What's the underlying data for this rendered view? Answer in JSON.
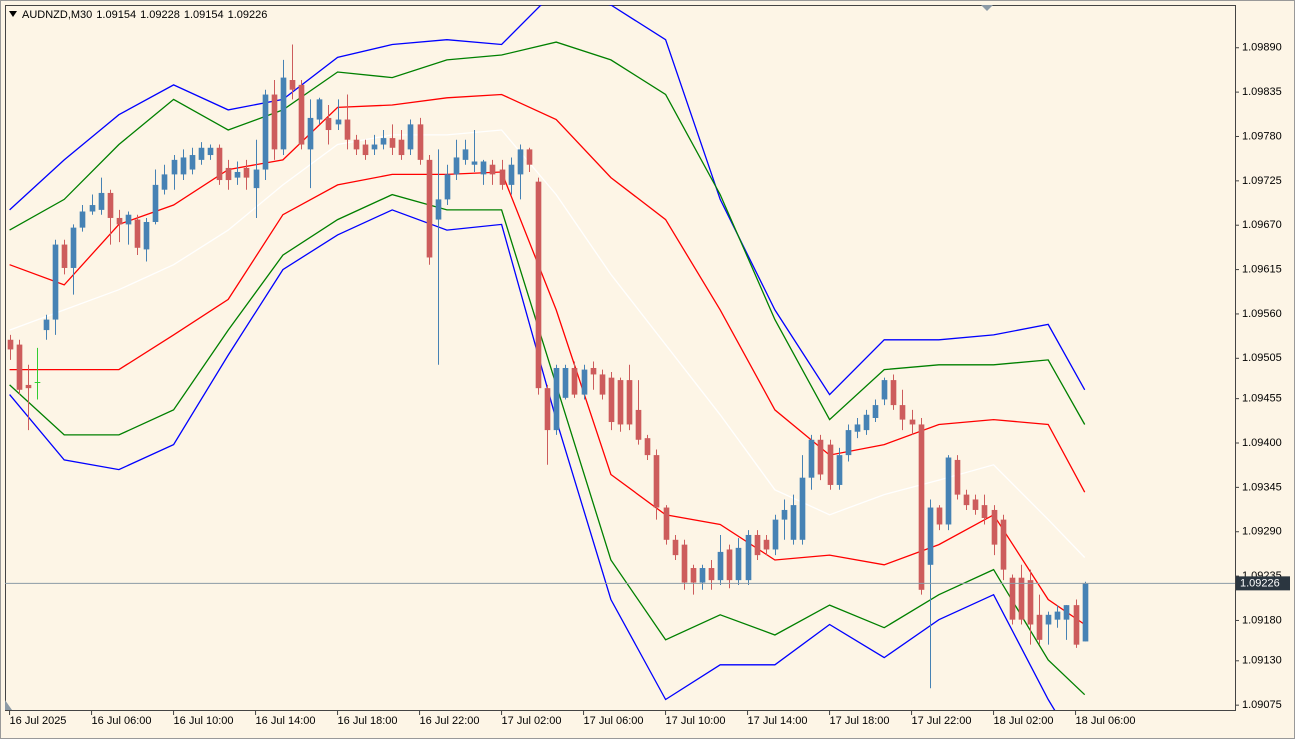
{
  "chart_data": {
    "type": "candlestick",
    "symbol": "AUDNZD,M30",
    "open": [
      1.09528,
      1.09522,
      1.09472,
      1.09475,
      1.0954,
      1.09553,
      1.09646,
      1.09617,
      1.09667,
      1.09687,
      1.09689,
      1.0971,
      1.09679,
      1.09671,
      1.09677,
      1.0964,
      1.09674,
      1.09714,
      1.09733,
      1.09733,
      1.09739,
      1.09751,
      1.09757,
      1.09766,
      1.09741,
      1.09729,
      1.09741,
      1.09716,
      1.09739,
      1.09832,
      1.09764,
      1.0985,
      1.09844,
      1.09764,
      1.09801,
      1.09803,
      1.09795,
      1.09801,
      1.09776,
      1.0977,
      1.09764,
      1.0977,
      1.09778,
      1.09776,
      1.09764,
      1.09795,
      1.09751,
      1.09677,
      1.09702,
      1.09733,
      1.09751,
      1.09745,
      1.09733,
      1.09745,
      1.09739,
      1.0972,
      1.09733,
      1.09764,
      1.09724,
      1.09468,
      1.09416,
      1.09456,
      1.09493,
      1.0946,
      1.09493,
      1.09485,
      1.09481,
      1.09478,
      1.09478,
      1.09441,
      1.09406,
      1.09385,
      1.0932,
      1.0928,
      1.09274,
      1.09245,
      1.09227,
      1.09245,
      1.0923,
      1.09268,
      1.0923,
      1.0923,
      1.09286,
      1.0928,
      1.09268,
      1.09305,
      1.0928,
      1.0928,
      1.09357,
      1.09404,
      1.09398,
      1.09348,
      1.09385,
      1.09414,
      1.09416,
      1.09431,
      1.09454,
      1.09478,
      1.09447,
      1.09429,
      1.09423,
      1.09249,
      1.0932,
      1.09299,
      1.09379,
      1.09336,
      1.0933,
      1.09323,
      1.09317,
      1.09305,
      1.09233,
      1.09233,
      1.0923,
      1.09187,
      1.09175,
      1.09181,
      1.09181,
      1.09199,
      1.09154
    ],
    "high": [
      1.09534,
      1.09528,
      1.09497,
      1.09518,
      1.09559,
      1.09652,
      1.09652,
      1.09671,
      1.09695,
      1.09708,
      1.09729,
      1.09714,
      1.09689,
      1.09687,
      1.09683,
      1.09679,
      1.09739,
      1.09745,
      1.09757,
      1.09764,
      1.09766,
      1.09773,
      1.0977,
      1.0977,
      1.09751,
      1.09749,
      1.09751,
      1.09776,
      1.09838,
      1.0985,
      1.09875,
      1.09894,
      1.0985,
      1.09826,
      1.09828,
      1.09819,
      1.09826,
      1.09832,
      1.09782,
      1.09776,
      1.09782,
      1.09788,
      1.09795,
      1.09788,
      1.09801,
      1.09803,
      1.09757,
      1.09764,
      1.09745,
      1.09776,
      1.09776,
      1.09788,
      1.09751,
      1.09751,
      1.09751,
      1.09754,
      1.0977,
      1.09766,
      1.09729,
      1.09472,
      1.09497,
      1.09497,
      1.09501,
      1.09497,
      1.09501,
      1.09491,
      1.09488,
      1.09481,
      1.09497,
      1.09478,
      1.0941,
      1.09392,
      1.09323,
      1.09286,
      1.0928,
      1.09249,
      1.09249,
      1.09255,
      1.09286,
      1.09274,
      1.09282,
      1.09292,
      1.09292,
      1.09286,
      1.09311,
      1.0933,
      1.09336,
      1.09385,
      1.0941,
      1.0941,
      1.09404,
      1.09394,
      1.09423,
      1.09431,
      1.09441,
      1.09454,
      1.09481,
      1.09485,
      1.09466,
      1.09441,
      1.09431,
      1.0933,
      1.09323,
      1.09385,
      1.09385,
      1.09342,
      1.09336,
      1.09336,
      1.09323,
      1.09311,
      1.09237,
      1.09249,
      1.09243,
      1.09212,
      1.09191,
      1.09199,
      1.09199,
      1.09206,
      1.09228
    ],
    "low": [
      1.09503,
      1.0946,
      1.09416,
      1.09454,
      1.09528,
      1.09534,
      1.09609,
      1.09584,
      1.09662,
      1.09683,
      1.09683,
      1.09646,
      1.09649,
      1.09646,
      1.09633,
      1.09625,
      1.09671,
      1.09708,
      1.09714,
      1.09726,
      1.09733,
      1.09745,
      1.09751,
      1.0972,
      1.09714,
      1.0972,
      1.09714,
      1.09679,
      1.09726,
      1.09751,
      1.09757,
      1.09826,
      1.09764,
      1.09716,
      1.09795,
      1.0977,
      1.09788,
      1.09764,
      1.09757,
      1.09751,
      1.09757,
      1.09764,
      1.09757,
      1.09751,
      1.09757,
      1.09745,
      1.09621,
      1.09497,
      1.09695,
      1.09726,
      1.09745,
      1.09736,
      1.0972,
      1.0972,
      1.09714,
      1.09708,
      1.09702,
      1.09736,
      1.0946,
      1.09373,
      1.0941,
      1.09454,
      1.09456,
      1.09454,
      1.09466,
      1.09454,
      1.09416,
      1.09414,
      1.09416,
      1.09398,
      1.09379,
      1.09305,
      1.09274,
      1.09255,
      1.09218,
      1.09212,
      1.09218,
      1.09218,
      1.09224,
      1.0922,
      1.09224,
      1.09224,
      1.09255,
      1.09261,
      1.09261,
      1.0928,
      1.09274,
      1.09274,
      1.09342,
      1.09354,
      1.09342,
      1.09342,
      1.09377,
      1.09406,
      1.0941,
      1.09426,
      1.09447,
      1.09441,
      1.09416,
      1.0941,
      1.09212,
      1.09096,
      1.09292,
      1.09292,
      1.0933,
      1.09317,
      1.09311,
      1.09299,
      1.09261,
      1.0923,
      1.09175,
      1.09175,
      1.0915,
      1.0915,
      1.0915,
      1.09171,
      1.09156,
      1.09146,
      1.09154
    ],
    "close": [
      1.09516,
      1.09466,
      1.09468,
      1.09475,
      1.09553,
      1.09646,
      1.09617,
      1.09667,
      1.09687,
      1.09695,
      1.0971,
      1.09679,
      1.09671,
      1.09683,
      1.09642,
      1.09674,
      1.0972,
      1.09733,
      1.09751,
      1.09754,
      1.09757,
      1.09766,
      1.09766,
      1.09726,
      1.09726,
      1.09736,
      1.09729,
      1.09739,
      1.09832,
      1.09764,
      1.09853,
      1.09838,
      1.0977,
      1.09803,
      1.09826,
      1.09788,
      1.09801,
      1.09776,
      1.09764,
      1.09757,
      1.0977,
      1.09778,
      1.09766,
      1.09757,
      1.09795,
      1.09751,
      1.0963,
      1.09702,
      1.09733,
      1.09754,
      1.09764,
      1.09749,
      1.09749,
      1.09733,
      1.0972,
      1.09745,
      1.09764,
      1.09745,
      1.09468,
      1.09416,
      1.09493,
      1.09493,
      1.0946,
      1.09491,
      1.09485,
      1.0946,
      1.09426,
      1.09423,
      1.09423,
      1.09404,
      1.09385,
      1.0932,
      1.0928,
      1.09261,
      1.09227,
      1.09227,
      1.09245,
      1.0923,
      1.09265,
      1.0923,
      1.0927,
      1.09286,
      1.09261,
      1.09268,
      1.09305,
      1.09317,
      1.09323,
      1.09357,
      1.09404,
      1.09361,
      1.09348,
      1.09385,
      1.09416,
      1.09423,
      1.09435,
      1.09447,
      1.09478,
      1.09447,
      1.09429,
      1.09423,
      1.09218,
      1.0932,
      1.09299,
      1.09382,
      1.09336,
      1.09323,
      1.09317,
      1.09307,
      1.09274,
      1.09243,
      1.09181,
      1.09181,
      1.09175,
      1.09156,
      1.09187,
      1.09191,
      1.09199,
      1.0915,
      1.09226
    ],
    "bull_color": "#4682b4",
    "bear_color": "#cd5c5c",
    "doji_color": "#32cd32",
    "price_line_color": "#8c9aa6",
    "xlim": [
      -0.5,
      134.5
    ],
    "xticks": [
      {
        "value": 0,
        "label": "16 Jul 2025"
      },
      {
        "value": 9,
        "label": "16 Jul 06:00"
      },
      {
        "value": 18,
        "label": "16 Jul 10:00"
      },
      {
        "value": 27,
        "label": "16 Jul 14:00"
      },
      {
        "value": 36,
        "label": "16 Jul 18:00"
      },
      {
        "value": 45,
        "label": "16 Jul 22:00"
      },
      {
        "value": 54,
        "label": "17 Jul 02:00"
      },
      {
        "value": 63,
        "label": "17 Jul 06:00"
      },
      {
        "value": 72,
        "label": "17 Jul 10:00"
      },
      {
        "value": 81,
        "label": "17 Jul 14:00"
      },
      {
        "value": 90,
        "label": "17 Jul 18:00"
      },
      {
        "value": 99,
        "label": "17 Jul 22:00"
      },
      {
        "value": 108,
        "label": "18 Jul 02:00"
      },
      {
        "value": 117,
        "label": "18 Jul 06:00"
      }
    ],
    "ylim": [
      1.09069,
      1.09943
    ],
    "yticks": [
      {
        "value": 1.0989,
        "label": "1.09890"
      },
      1.09835,
      {
        "value": 1.0978,
        "label": "1.09780"
      },
      1.09725,
      {
        "value": 1.0967,
        "label": "1.09670"
      },
      1.09615,
      {
        "value": 1.0956,
        "label": "1.09560"
      },
      1.09505,
      1.09455,
      {
        "value": 1.094,
        "label": "1.09400"
      },
      1.09345,
      {
        "value": 1.0929,
        "label": "1.09290"
      },
      1.09235,
      {
        "value": 1.0918,
        "label": "1.09180"
      },
      {
        "value": 1.0913,
        "label": "1.09130"
      },
      1.09075
    ],
    "bands": {
      "x": [
        0,
        6,
        12,
        18,
        24,
        30,
        36,
        42,
        48,
        54,
        60,
        66,
        72,
        78,
        84,
        90,
        96,
        102,
        108,
        114,
        118
      ],
      "series": [
        {
          "color": "#0000ff",
          "values": [
            1.09689,
            1.09751,
            1.09807,
            1.09844,
            1.09813,
            1.09826,
            1.09878,
            1.09894,
            1.099,
            1.09894,
            1.09962,
            1.09943,
            1.099,
            1.09702,
            1.09565,
            1.0946,
            1.09528,
            1.09528,
            1.09534,
            1.09547,
            1.09466
          ]
        },
        {
          "color": "#008000",
          "values": [
            1.09664,
            1.09702,
            1.0977,
            1.09826,
            1.09788,
            1.09813,
            1.0986,
            1.09853,
            1.09875,
            1.09881,
            1.09897,
            1.09875,
            1.09832,
            1.09708,
            1.09553,
            1.09429,
            1.09491,
            1.09497,
            1.09497,
            1.09503,
            1.09423
          ]
        },
        {
          "color": "#ff0000",
          "values": [
            1.09621,
            1.09596,
            1.09671,
            1.09695,
            1.09739,
            1.09751,
            1.09816,
            1.09819,
            1.09828,
            1.09832,
            1.09801,
            1.09729,
            1.09677,
            1.09565,
            1.09441,
            1.09385,
            1.09398,
            1.09423,
            1.09429,
            1.09423,
            1.09339
          ]
        },
        {
          "color": "#ffffff",
          "values": [
            1.0954,
            1.09565,
            1.0959,
            1.09621,
            1.09664,
            1.0972,
            1.0977,
            1.09782,
            1.09782,
            1.09788,
            1.09708,
            1.09609,
            1.09522,
            1.09435,
            1.09342,
            1.09311,
            1.09336,
            1.09354,
            1.09373,
            1.09305,
            1.09258
          ]
        },
        {
          "color": "#ff0000",
          "values": [
            1.09491,
            1.09491,
            1.09491,
            1.09534,
            1.09578,
            1.09683,
            1.0972,
            1.09733,
            1.09733,
            1.09736,
            1.09565,
            1.09361,
            1.09311,
            1.09299,
            1.09255,
            1.09261,
            1.09249,
            1.09274,
            1.09311,
            1.09206,
            1.09175
          ]
        },
        {
          "color": "#008000",
          "values": [
            1.09472,
            1.0941,
            1.0941,
            1.09441,
            1.0954,
            1.09633,
            1.09677,
            1.09708,
            1.09689,
            1.09689,
            1.09472,
            1.09255,
            1.09156,
            1.09187,
            1.09162,
            1.09199,
            1.09171,
            1.09212,
            1.09243,
            1.09131,
            1.09088
          ]
        },
        {
          "color": "#0000ff",
          "values": [
            1.0946,
            1.09379,
            1.09367,
            1.09398,
            1.09509,
            1.09615,
            1.09658,
            1.09689,
            1.09664,
            1.09671,
            1.09429,
            1.09206,
            1.09082,
            1.09125,
            1.09125,
            1.09175,
            1.09134,
            1.09181,
            1.09212,
            1.09082,
            1.09007
          ]
        }
      ]
    }
  }
}
